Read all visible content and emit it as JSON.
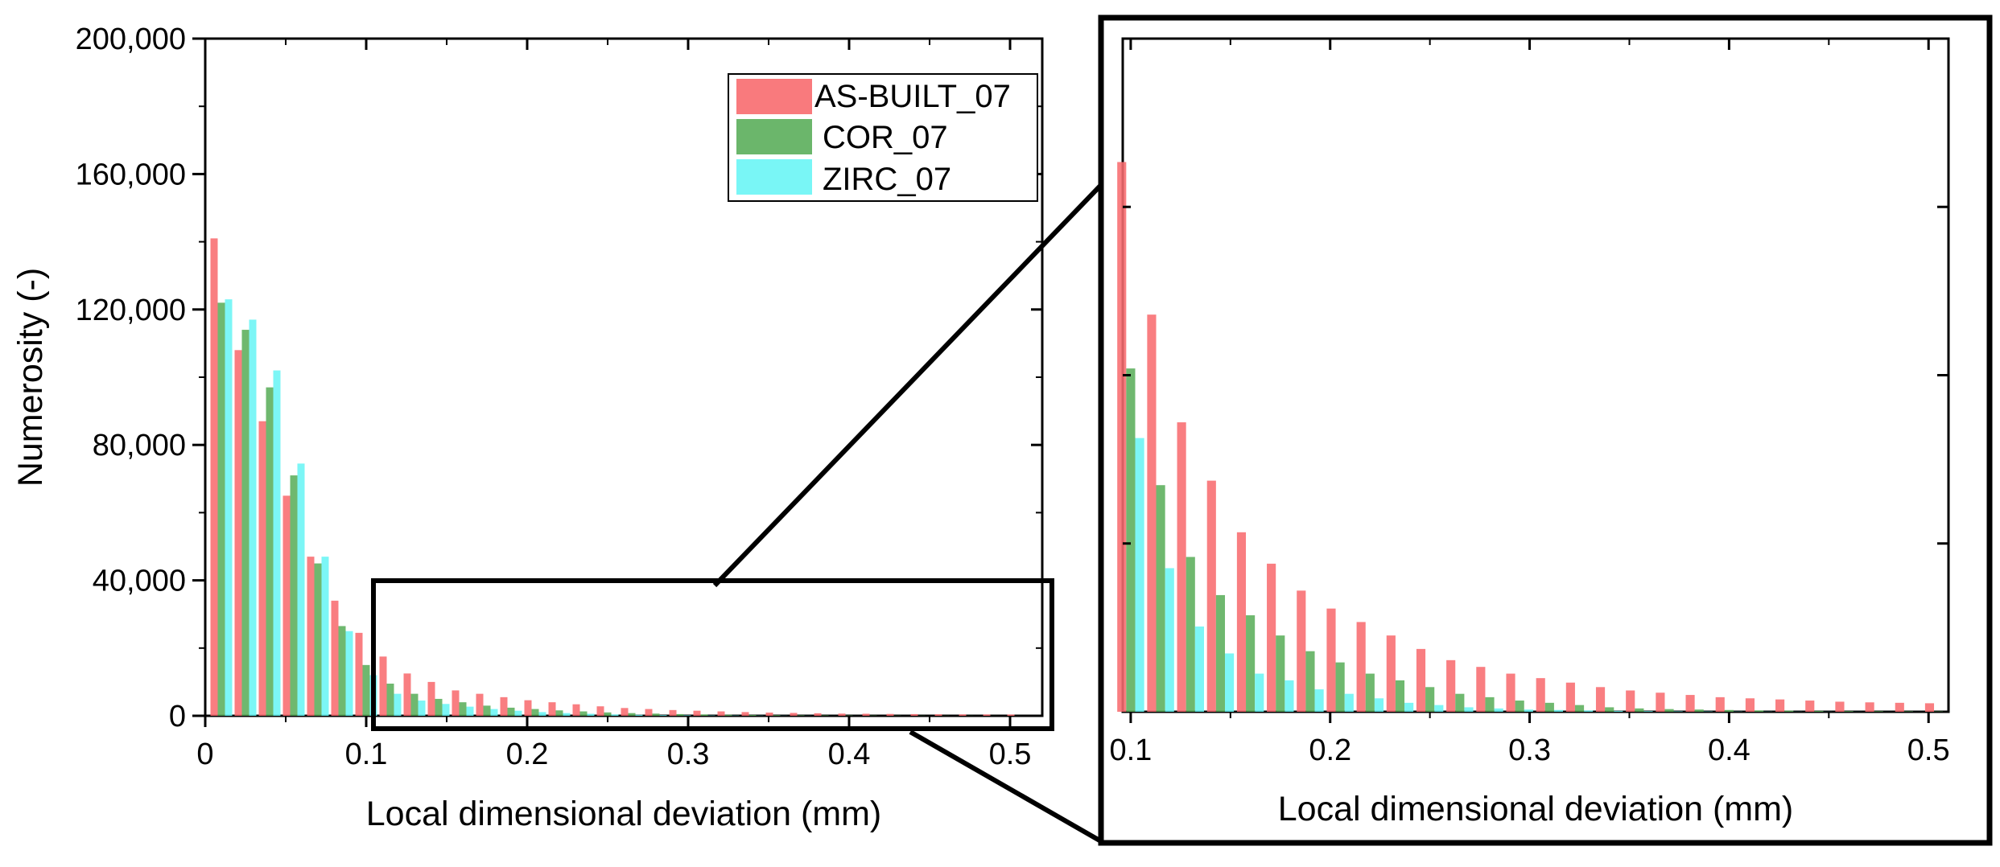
{
  "colors": {
    "series_0": "#F86C6F",
    "series_1": "#5BAE5B",
    "series_2": "#6AF5F5",
    "frame": "#000000"
  },
  "chart_data": [
    {
      "id": "main",
      "type": "bar",
      "title": "",
      "xlabel": "Local dimensional deviation (mm)",
      "ylabel": "Numerosity (-)",
      "xlim": [
        0,
        0.52
      ],
      "ylim": [
        0,
        200000
      ],
      "xticks": [
        0,
        0.1,
        0.2,
        0.3,
        0.4,
        0.5
      ],
      "xtick_labels": [
        "0",
        "0.1",
        "0.2",
        "0.3",
        "0.4",
        "0.5"
      ],
      "yticks": [
        0,
        40000,
        80000,
        120000,
        160000,
        200000
      ],
      "ytick_labels": [
        "0",
        "40,000",
        "80,000",
        "120,000",
        "160,000",
        "200,000"
      ],
      "legend_position": "top-right",
      "x": [
        0.01,
        0.025,
        0.04,
        0.055,
        0.07,
        0.085,
        0.1,
        0.115,
        0.13,
        0.145,
        0.16,
        0.175,
        0.19,
        0.205,
        0.22,
        0.235,
        0.25,
        0.265,
        0.28,
        0.295,
        0.31,
        0.325,
        0.34,
        0.355,
        0.37,
        0.385,
        0.4,
        0.415,
        0.43,
        0.445,
        0.46,
        0.475,
        0.49,
        0.505
      ],
      "series": [
        {
          "name": "AS-BUILT_07",
          "values": [
            141000,
            108000,
            87000,
            65000,
            47000,
            34000,
            24500,
            17500,
            12500,
            10000,
            7500,
            6500,
            5500,
            4600,
            4000,
            3400,
            2800,
            2300,
            2000,
            1700,
            1500,
            1300,
            1100,
            950,
            850,
            750,
            650,
            600,
            550,
            500,
            450,
            420,
            400,
            380
          ]
        },
        {
          "name": "COR_07",
          "values": [
            122000,
            114000,
            97000,
            71000,
            45000,
            26500,
            15000,
            9500,
            6500,
            5000,
            4000,
            3000,
            2400,
            2000,
            1600,
            1300,
            1000,
            800,
            650,
            500,
            400,
            300,
            250,
            200,
            150,
            120,
            100,
            80,
            60,
            50,
            40,
            30,
            25,
            20
          ]
        },
        {
          "name": "ZIRC_07",
          "values": [
            123000,
            117000,
            102000,
            74500,
            47000,
            25000,
            12000,
            6500,
            4500,
            3500,
            2700,
            2000,
            1500,
            1100,
            800,
            600,
            400,
            300,
            200,
            150,
            100,
            80,
            60,
            40,
            30,
            20,
            15,
            10,
            8,
            6,
            5,
            4,
            3,
            2
          ]
        }
      ]
    },
    {
      "id": "zoom",
      "type": "bar",
      "title": "",
      "xlabel": "Local dimensional deviation (mm)",
      "ylabel": "",
      "xlim": [
        0.096,
        0.51
      ],
      "ylim": [
        0,
        30000
      ],
      "xticks": [
        0.1,
        0.2,
        0.3,
        0.4,
        0.5
      ],
      "xtick_labels": [
        "0.1",
        "0.2",
        "0.3",
        "0.4",
        "0.5"
      ],
      "x": [
        0.1,
        0.115,
        0.13,
        0.145,
        0.16,
        0.175,
        0.19,
        0.205,
        0.22,
        0.235,
        0.25,
        0.265,
        0.28,
        0.295,
        0.31,
        0.325,
        0.34,
        0.355,
        0.37,
        0.385,
        0.4,
        0.415,
        0.43,
        0.445,
        0.46,
        0.475,
        0.49,
        0.505
      ],
      "series": [
        {
          "name": "AS-BUILT_07",
          "values": [
            24500,
            17700,
            12900,
            10300,
            8000,
            6600,
            5400,
            4600,
            4000,
            3400,
            2800,
            2300,
            2000,
            1700,
            1500,
            1300,
            1100,
            950,
            850,
            750,
            650,
            600,
            550,
            500,
            450,
            420,
            400,
            380
          ]
        },
        {
          "name": "COR_07",
          "values": [
            15300,
            10100,
            6900,
            5200,
            4300,
            3400,
            2700,
            2200,
            1700,
            1400,
            1100,
            800,
            650,
            500,
            400,
            300,
            200,
            150,
            120,
            100,
            80,
            60,
            50,
            40,
            30,
            25,
            20,
            15
          ]
        },
        {
          "name": "ZIRC_07",
          "values": [
            12200,
            6400,
            3800,
            2600,
            1700,
            1400,
            1000,
            800,
            600,
            400,
            300,
            200,
            150,
            100,
            80,
            60,
            40,
            30,
            20,
            15,
            10,
            8,
            6,
            5,
            4,
            3,
            2,
            1
          ]
        }
      ]
    }
  ]
}
